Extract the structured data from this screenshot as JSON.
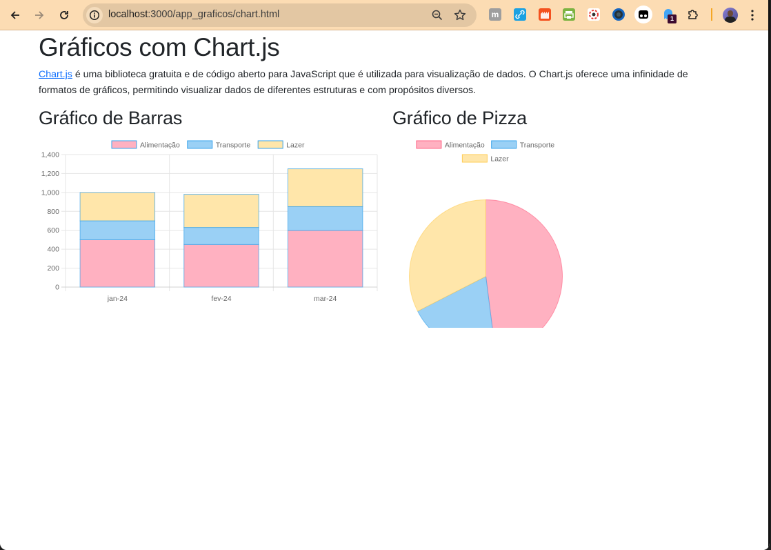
{
  "browser": {
    "url_host": "localhost",
    "url_path": ":3000/app_graficos/chart.html",
    "back_icon": "arrow-left-icon",
    "forward_icon": "arrow-right-icon",
    "reload_icon": "reload-icon",
    "site_info_icon": "info-icon",
    "zoom_icon": "zoom-out-icon",
    "bookmark_icon": "star-icon",
    "extensions": [
      {
        "name": "m-extension-icon",
        "color": "#9e9e9e"
      },
      {
        "name": "link-extension-icon",
        "color": "#1ba1e2"
      },
      {
        "name": "factory-extension-icon",
        "color": "#f4511e"
      },
      {
        "name": "printer-extension-icon",
        "color": "#7cb342"
      },
      {
        "name": "color-picker-extension-icon",
        "color": "#e53935"
      },
      {
        "name": "dark-circle-extension-icon",
        "color": "#1565c0"
      },
      {
        "name": "tampermonkey-extension-icon",
        "color": "#000000"
      },
      {
        "name": "ghost-extension-icon",
        "color": "#42a5f5"
      },
      {
        "name": "puzzle-extensions-icon",
        "color": "#333333"
      }
    ],
    "extension_badge": "1",
    "menu_icon": "kebab-menu-icon"
  },
  "page": {
    "title": "Gráficos com Chart.js",
    "intro_link": "Chart.js",
    "intro_text": " é uma biblioteca gratuita e de código aberto para JavaScript que é utilizada para visualização de dados. O Chart.js oferece uma infinidade de formatos de gráficos, permitindo visualizar dados de diferentes estruturas e com propósitos diversos.",
    "bar_section_title": "Gráfico de Barras",
    "pie_section_title": "Gráfico de Pizza"
  },
  "colors": {
    "alimentacao_fill": "#ffb1c1",
    "alimentacao_border": "#ff6384",
    "transporte_fill": "#9ad0f5",
    "transporte_border": "#36a2eb",
    "lazer_fill": "#ffe6aa",
    "lazer_border": "#ffcd56",
    "grid": "#e5e5e5",
    "tick_text": "#666666"
  },
  "chart_data": [
    {
      "type": "bar",
      "stacked": true,
      "title": "Gráfico de Barras",
      "categories": [
        "jan-24",
        "fev-24",
        "mar-24"
      ],
      "series": [
        {
          "name": "Alimentação",
          "values": [
            500,
            450,
            600
          ]
        },
        {
          "name": "Transporte",
          "values": [
            200,
            180,
            250
          ]
        },
        {
          "name": "Lazer",
          "values": [
            300,
            350,
            400
          ]
        }
      ],
      "xlabel": "",
      "ylabel": "",
      "ylim": [
        0,
        1400
      ],
      "yticks": [
        "0",
        "200",
        "400",
        "600",
        "800",
        "1,000",
        "1,200",
        "1,400"
      ],
      "grid": true,
      "legend_position": "top"
    },
    {
      "type": "pie",
      "title": "Gráfico de Pizza",
      "categories": [
        "Alimentação",
        "Transporte",
        "Lazer"
      ],
      "values": [
        1550,
        630,
        1050
      ],
      "legend_position": "top"
    }
  ]
}
